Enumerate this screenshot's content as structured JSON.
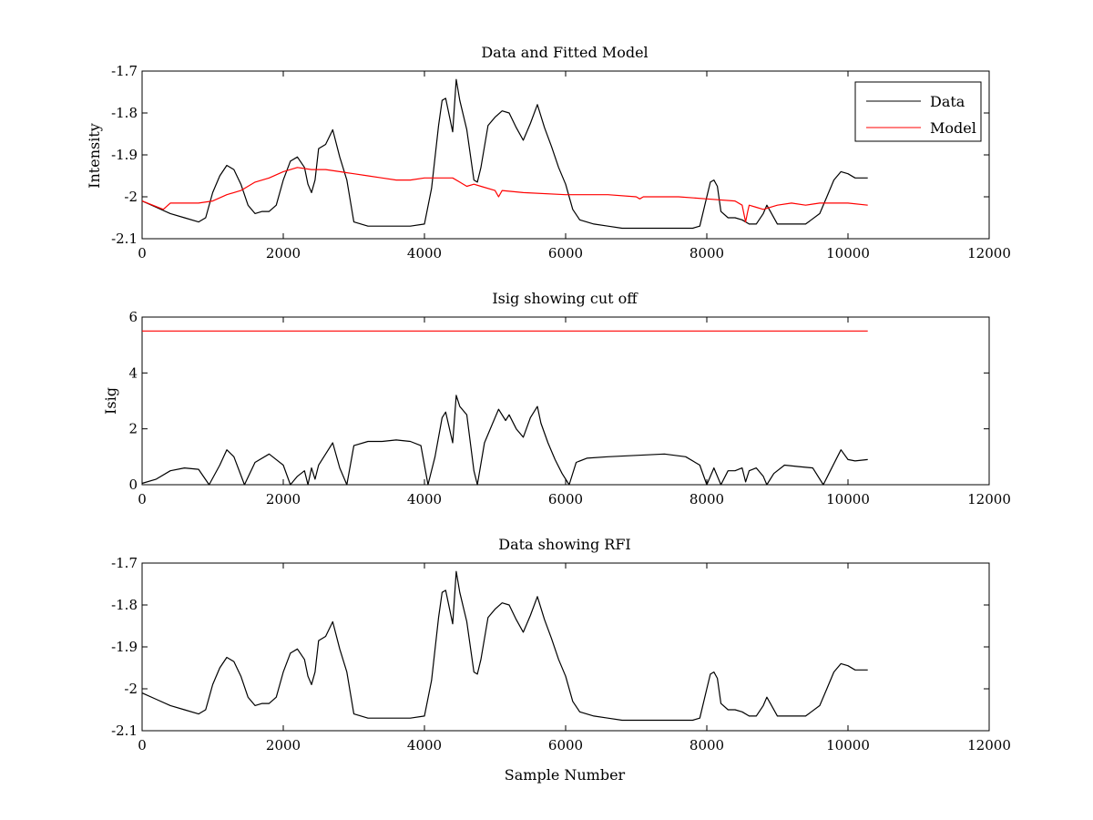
{
  "figure": {
    "background": "#ffffff",
    "colors": {
      "data": "#000000",
      "model": "#ff0000",
      "axes": "#000000"
    }
  },
  "chart_data": [
    {
      "type": "line",
      "title": "Data and Fitted Model",
      "xlabel": "",
      "ylabel": "Intensity",
      "xlim": [
        0,
        12000
      ],
      "ylim": [
        -2.1,
        -1.7
      ],
      "xticks": [
        0,
        2000,
        4000,
        6000,
        8000,
        10000,
        12000
      ],
      "yticks": [
        -1.7,
        -1.8,
        -1.9,
        -2,
        -2.1
      ],
      "xtick_labels": [
        "0",
        "2000",
        "4000",
        "6000",
        "8000",
        "10000",
        "12000"
      ],
      "ytick_labels": [
        "-1.7",
        "-1.8",
        "-1.9",
        "-2",
        "-2.1"
      ],
      "grid": false,
      "legend": {
        "placement": "top-right",
        "entries": [
          "Data",
          "Model"
        ]
      },
      "series": [
        {
          "name": "Data",
          "color": "#000000",
          "x": [
            0,
            200,
            400,
            600,
            800,
            900,
            1000,
            1100,
            1200,
            1300,
            1400,
            1500,
            1600,
            1700,
            1800,
            1900,
            2000,
            2100,
            2200,
            2300,
            2350,
            2400,
            2450,
            2500,
            2600,
            2700,
            2800,
            2900,
            3000,
            3200,
            3400,
            3600,
            3800,
            4000,
            4100,
            4200,
            4250,
            4300,
            4400,
            4450,
            4500,
            4600,
            4700,
            4750,
            4800,
            4900,
            5000,
            5100,
            5200,
            5300,
            5400,
            5500,
            5600,
            5700,
            5800,
            5900,
            6000,
            6100,
            6200,
            6400,
            6600,
            6800,
            7000,
            7200,
            7400,
            7600,
            7800,
            7900,
            8000,
            8050,
            8100,
            8150,
            8200,
            8300,
            8400,
            8500,
            8600,
            8700,
            8800,
            8850,
            8900,
            9000,
            9200,
            9400,
            9600,
            9700,
            9800,
            9900,
            10000,
            10100,
            10200,
            10280
          ],
          "y": [
            -2.01,
            -2.025,
            -2.04,
            -2.05,
            -2.06,
            -2.05,
            -1.99,
            -1.95,
            -1.925,
            -1.935,
            -1.97,
            -2.02,
            -2.04,
            -2.035,
            -2.035,
            -2.02,
            -1.96,
            -1.915,
            -1.905,
            -1.93,
            -1.97,
            -1.99,
            -1.96,
            -1.885,
            -1.875,
            -1.84,
            -1.905,
            -1.96,
            -2.06,
            -2.07,
            -2.07,
            -2.07,
            -2.07,
            -2.065,
            -1.98,
            -1.83,
            -1.77,
            -1.765,
            -1.845,
            -1.72,
            -1.77,
            -1.84,
            -1.96,
            -1.965,
            -1.93,
            -1.83,
            -1.81,
            -1.795,
            -1.8,
            -1.835,
            -1.865,
            -1.825,
            -1.78,
            -1.835,
            -1.88,
            -1.93,
            -1.97,
            -2.03,
            -2.055,
            -2.065,
            -2.07,
            -2.075,
            -2.075,
            -2.075,
            -2.075,
            -2.075,
            -2.075,
            -2.07,
            -2.0,
            -1.965,
            -1.96,
            -1.975,
            -2.035,
            -2.05,
            -2.05,
            -2.055,
            -2.065,
            -2.065,
            -2.04,
            -2.02,
            -2.035,
            -2.065,
            -2.065,
            -2.065,
            -2.04,
            -2.0,
            -1.96,
            -1.94,
            -1.945,
            -1.955,
            -1.955,
            -1.955
          ]
        },
        {
          "name": "Model",
          "color": "#ff0000",
          "x": [
            0,
            300,
            400,
            800,
            1000,
            1200,
            1400,
            1600,
            1800,
            2000,
            2200,
            2400,
            2600,
            2800,
            3000,
            3200,
            3400,
            3600,
            3800,
            4000,
            4200,
            4400,
            4500,
            4600,
            4700,
            4800,
            5000,
            5050,
            5100,
            5400,
            6000,
            6600,
            7000,
            7050,
            7100,
            7600,
            8000,
            8400,
            8500,
            8550,
            8580,
            8600,
            8700,
            8800,
            9000,
            9200,
            9400,
            9600,
            9800,
            10000,
            10280
          ],
          "y": [
            -2.01,
            -2.03,
            -2.015,
            -2.015,
            -2.01,
            -1.995,
            -1.985,
            -1.965,
            -1.955,
            -1.94,
            -1.93,
            -1.935,
            -1.935,
            -1.94,
            -1.945,
            -1.95,
            -1.955,
            -1.96,
            -1.96,
            -1.955,
            -1.955,
            -1.955,
            -1.965,
            -1.975,
            -1.97,
            -1.975,
            -1.985,
            -2.0,
            -1.985,
            -1.99,
            -1.995,
            -1.995,
            -2.0,
            -2.005,
            -2.0,
            -2.0,
            -2.005,
            -2.01,
            -2.02,
            -2.06,
            -2.035,
            -2.02,
            -2.025,
            -2.03,
            -2.02,
            -2.015,
            -2.02,
            -2.015,
            -2.015,
            -2.015,
            -2.02
          ]
        }
      ]
    },
    {
      "type": "line",
      "title": "Isig showing cut off",
      "xlabel": "",
      "ylabel": "Isig",
      "xlim": [
        0,
        12000
      ],
      "ylim": [
        0,
        6
      ],
      "xticks": [
        0,
        2000,
        4000,
        6000,
        8000,
        10000,
        12000
      ],
      "yticks": [
        0,
        2,
        4,
        6
      ],
      "xtick_labels": [
        "0",
        "2000",
        "4000",
        "6000",
        "8000",
        "10000",
        "12000"
      ],
      "ytick_labels": [
        "0",
        "2",
        "4",
        "6"
      ],
      "grid": false,
      "series": [
        {
          "color": "#000000",
          "x": [
            0,
            200,
            400,
            600,
            800,
            950,
            1100,
            1200,
            1300,
            1450,
            1600,
            1800,
            2000,
            2100,
            2200,
            2300,
            2350,
            2400,
            2450,
            2500,
            2600,
            2700,
            2800,
            2900,
            3000,
            3200,
            3400,
            3600,
            3800,
            3950,
            4050,
            4150,
            4250,
            4300,
            4400,
            4450,
            4500,
            4600,
            4700,
            4750,
            4850,
            4950,
            5050,
            5150,
            5200,
            5300,
            5400,
            5500,
            5600,
            5650,
            5750,
            5850,
            5950,
            6050,
            6150,
            6300,
            6600,
            7000,
            7400,
            7700,
            7900,
            8000,
            8100,
            8200,
            8300,
            8400,
            8500,
            8550,
            8600,
            8700,
            8800,
            8850,
            8950,
            9100,
            9300,
            9500,
            9650,
            9750,
            9850,
            9900,
            10000,
            10100,
            10280
          ],
          "y": [
            0.05,
            0.2,
            0.5,
            0.6,
            0.55,
            0.0,
            0.7,
            1.25,
            1.0,
            0.0,
            0.8,
            1.1,
            0.7,
            0.0,
            0.3,
            0.5,
            0.0,
            0.6,
            0.2,
            0.7,
            1.1,
            1.5,
            0.6,
            0.0,
            1.4,
            1.55,
            1.55,
            1.6,
            1.55,
            1.4,
            0.0,
            1.0,
            2.4,
            2.6,
            1.5,
            3.2,
            2.8,
            2.5,
            0.5,
            0.0,
            1.5,
            2.1,
            2.7,
            2.3,
            2.5,
            2.0,
            1.7,
            2.4,
            2.8,
            2.2,
            1.5,
            0.9,
            0.4,
            0.0,
            0.8,
            0.95,
            1.0,
            1.05,
            1.1,
            1.0,
            0.7,
            0.0,
            0.6,
            0.0,
            0.5,
            0.5,
            0.6,
            0.1,
            0.5,
            0.6,
            0.3,
            0.0,
            0.4,
            0.7,
            0.65,
            0.6,
            0.0,
            0.5,
            1.0,
            1.25,
            0.9,
            0.85,
            0.9
          ]
        },
        {
          "color": "#ff0000",
          "x": [
            0,
            10280
          ],
          "y": [
            5.5,
            5.5
          ]
        }
      ]
    },
    {
      "type": "line",
      "title": "Data showing RFI",
      "xlabel": "Sample Number",
      "ylabel": "",
      "xlim": [
        0,
        12000
      ],
      "ylim": [
        -2.1,
        -1.7
      ],
      "xticks": [
        0,
        2000,
        4000,
        6000,
        8000,
        10000,
        12000
      ],
      "yticks": [
        -1.7,
        -1.8,
        -1.9,
        -2,
        -2.1
      ],
      "xtick_labels": [
        "0",
        "2000",
        "4000",
        "6000",
        "8000",
        "10000",
        "12000"
      ],
      "ytick_labels": [
        "-1.7",
        "-1.8",
        "-1.9",
        "-2",
        "-2.1"
      ],
      "grid": false,
      "series": [
        {
          "color": "#000000",
          "x": [
            0,
            200,
            400,
            600,
            800,
            900,
            1000,
            1100,
            1200,
            1300,
            1400,
            1500,
            1600,
            1700,
            1800,
            1900,
            2000,
            2100,
            2200,
            2300,
            2350,
            2400,
            2450,
            2500,
            2600,
            2700,
            2800,
            2900,
            3000,
            3200,
            3400,
            3600,
            3800,
            4000,
            4100,
            4200,
            4250,
            4300,
            4400,
            4450,
            4500,
            4600,
            4700,
            4750,
            4800,
            4900,
            5000,
            5100,
            5200,
            5300,
            5400,
            5500,
            5600,
            5700,
            5800,
            5900,
            6000,
            6100,
            6200,
            6400,
            6600,
            6800,
            7000,
            7200,
            7400,
            7600,
            7800,
            7900,
            8000,
            8050,
            8100,
            8150,
            8200,
            8300,
            8400,
            8500,
            8600,
            8700,
            8800,
            8850,
            8900,
            9000,
            9200,
            9400,
            9600,
            9700,
            9800,
            9900,
            10000,
            10100,
            10200,
            10280
          ],
          "y": [
            -2.01,
            -2.025,
            -2.04,
            -2.05,
            -2.06,
            -2.05,
            -1.99,
            -1.95,
            -1.925,
            -1.935,
            -1.97,
            -2.02,
            -2.04,
            -2.035,
            -2.035,
            -2.02,
            -1.96,
            -1.915,
            -1.905,
            -1.93,
            -1.97,
            -1.99,
            -1.96,
            -1.885,
            -1.875,
            -1.84,
            -1.905,
            -1.96,
            -2.06,
            -2.07,
            -2.07,
            -2.07,
            -2.07,
            -2.065,
            -1.98,
            -1.83,
            -1.77,
            -1.765,
            -1.845,
            -1.72,
            -1.77,
            -1.84,
            -1.96,
            -1.965,
            -1.93,
            -1.83,
            -1.81,
            -1.795,
            -1.8,
            -1.835,
            -1.865,
            -1.825,
            -1.78,
            -1.835,
            -1.88,
            -1.93,
            -1.97,
            -2.03,
            -2.055,
            -2.065,
            -2.07,
            -2.075,
            -2.075,
            -2.075,
            -2.075,
            -2.075,
            -2.075,
            -2.07,
            -2.0,
            -1.965,
            -1.96,
            -1.975,
            -2.035,
            -2.05,
            -2.05,
            -2.055,
            -2.065,
            -2.065,
            -2.04,
            -2.02,
            -2.035,
            -2.065,
            -2.065,
            -2.065,
            -2.04,
            -2.0,
            -1.96,
            -1.94,
            -1.945,
            -1.955,
            -1.955,
            -1.955
          ]
        }
      ]
    }
  ]
}
